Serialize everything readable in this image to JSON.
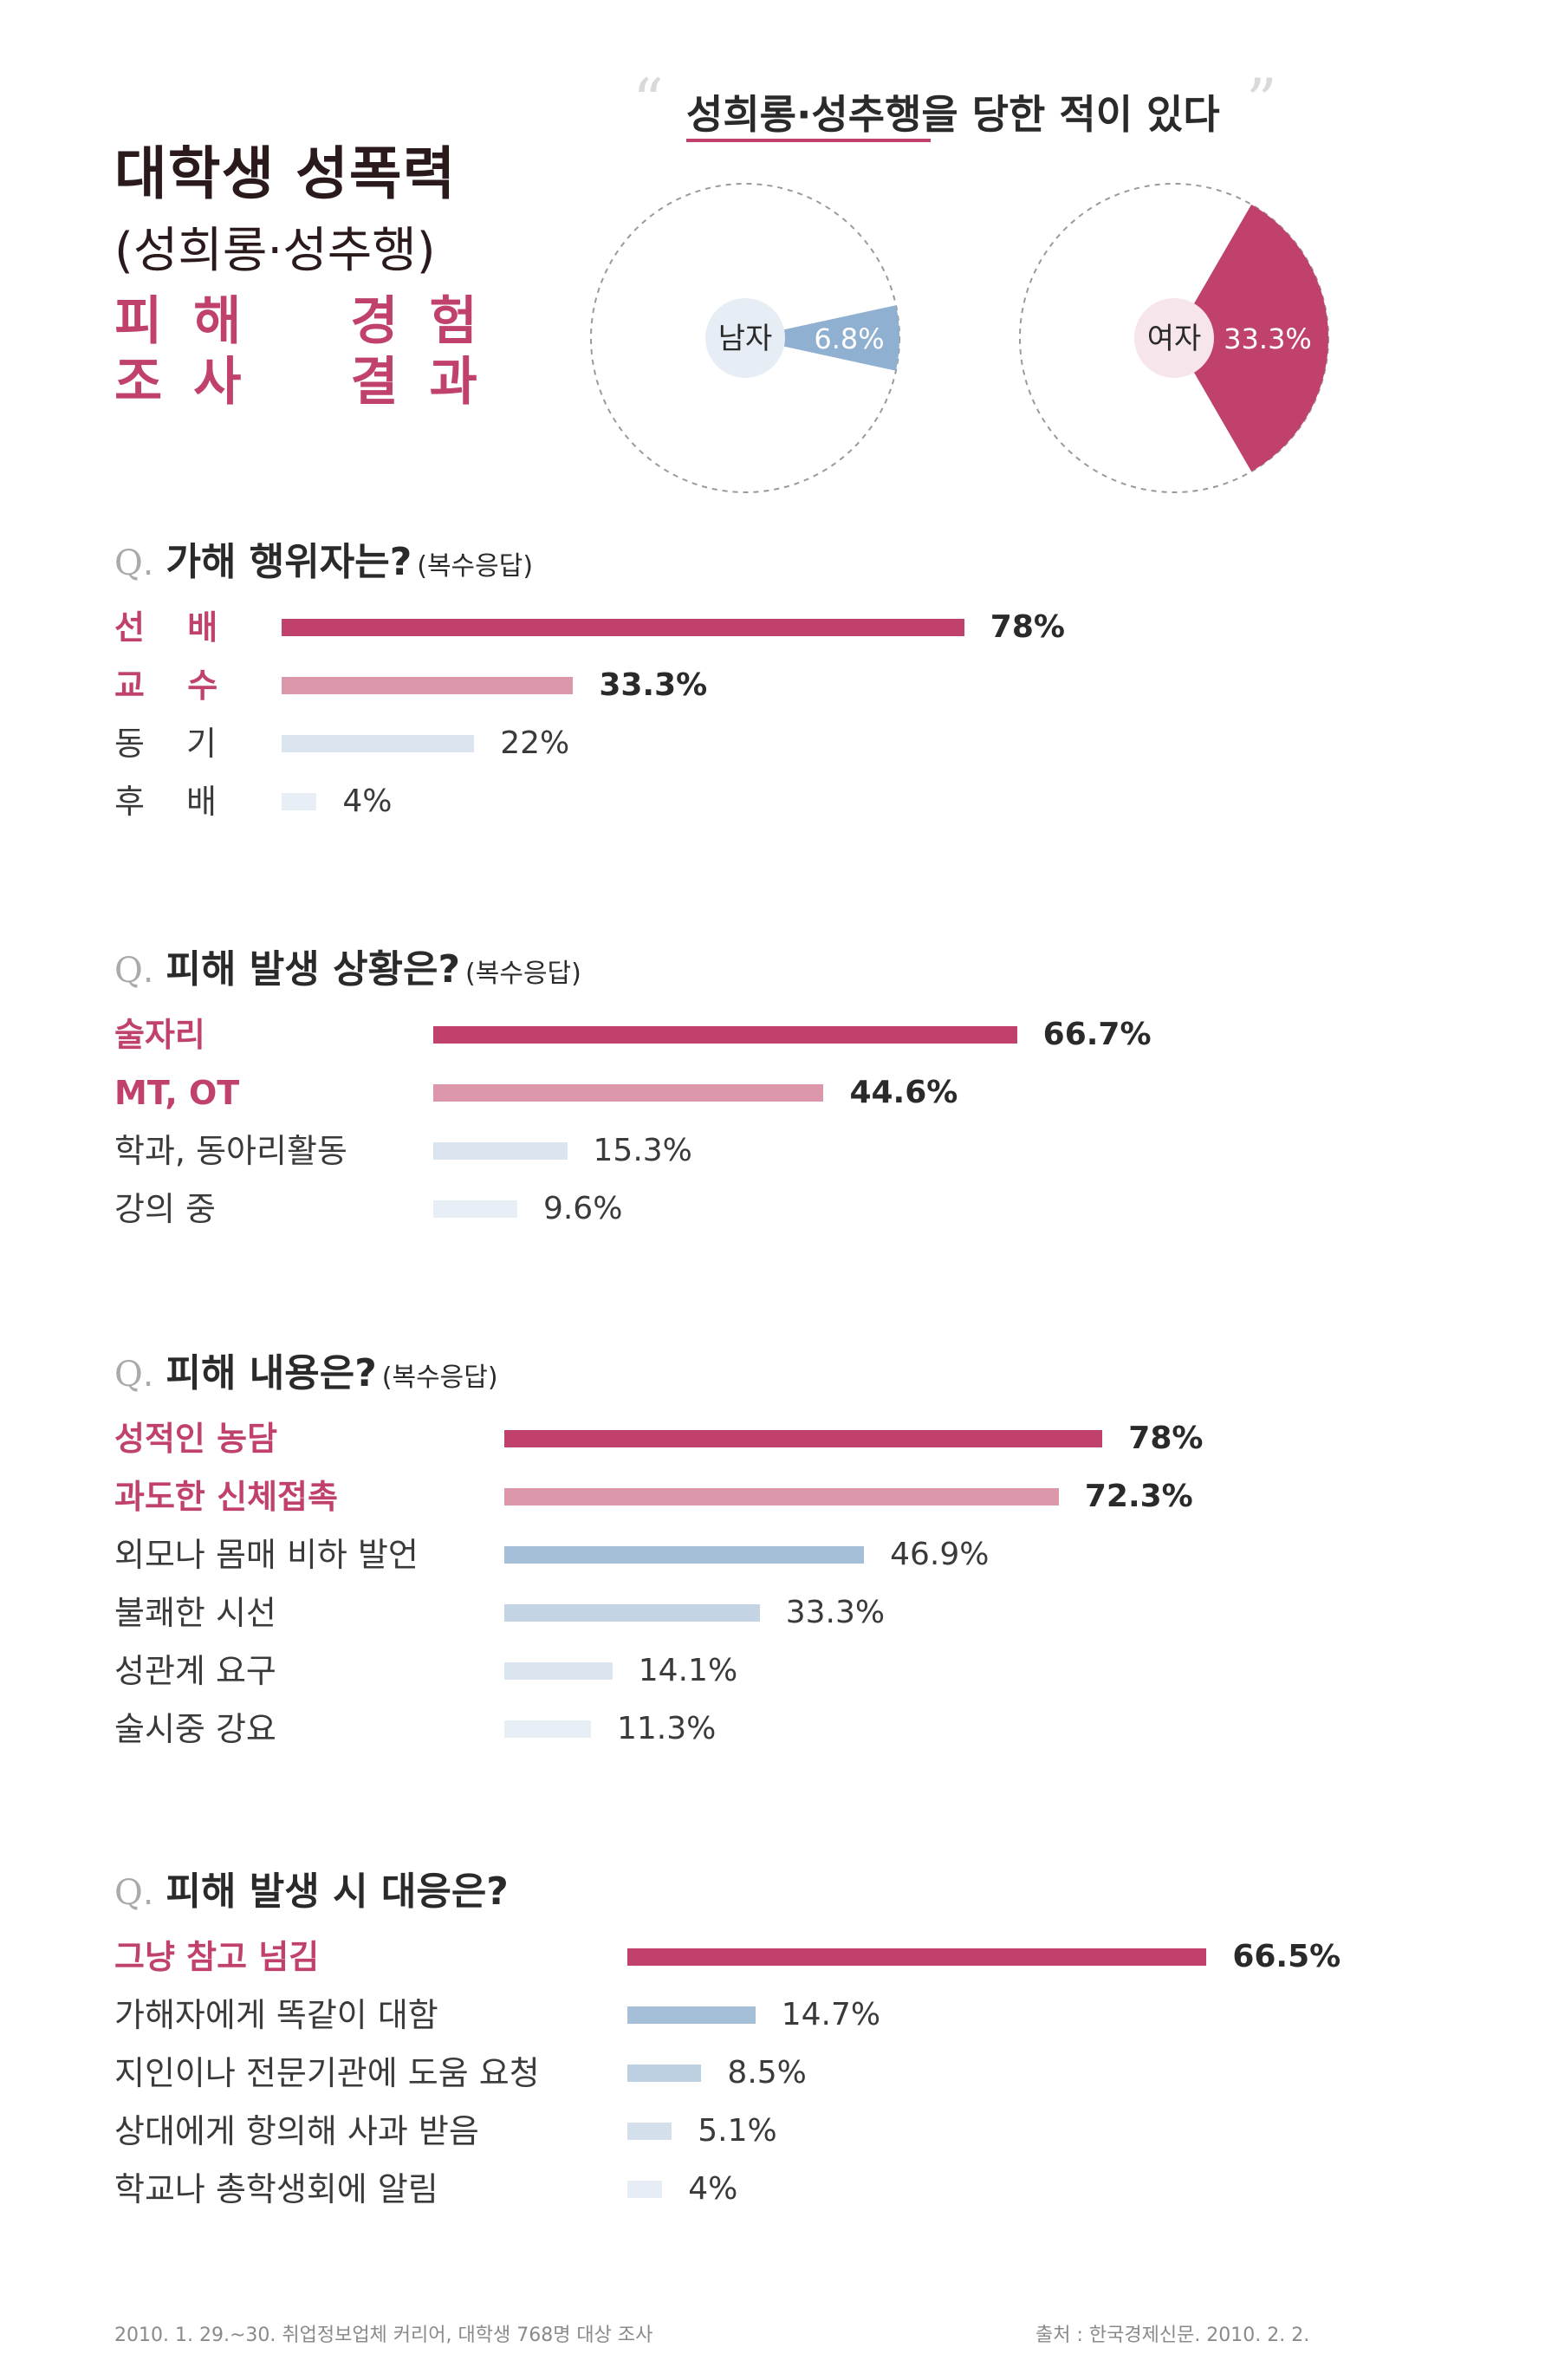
{
  "title": {
    "main": "대학생 성폭력",
    "sub": "(성희롱·성추행)",
    "red_line1": [
      "피해",
      "경험"
    ],
    "red_line2": [
      "조사",
      "결과"
    ]
  },
  "header_quote": {
    "open_mark": "“",
    "text": "성희롱·성추행을 당한 적이 있다",
    "close_mark": "”"
  },
  "colors": {
    "accent": "#c0426c",
    "accent_light": "#dd97ab",
    "blue": "#a6bfd8",
    "blue_light": "#c4d4e5",
    "blue_pale": "#dbe5ef",
    "blue_faint": "#e8eef5",
    "dark": "#2b1a1c"
  },
  "chart_data": [
    {
      "type": "pie",
      "title": "성희롱·성추행을 당한 적이 있다",
      "slices": [
        {
          "name": "남자",
          "value": 6.8,
          "label": "6.8%",
          "color": "#8fb0d0",
          "badge_color": "#e7edf4"
        },
        {
          "name": "여자",
          "value": 33.3,
          "label": "33.3%",
          "color": "#c0426c",
          "badge_color": "#f6e5ea"
        }
      ]
    },
    {
      "type": "bar",
      "question": "가해 행위자는?",
      "note": "(복수응답)",
      "categories": [
        "선 배",
        "교 수",
        "동 기",
        "후 배"
      ],
      "values": [
        78,
        33.3,
        22,
        4
      ],
      "labels": [
        "78%",
        "33.3%",
        "22%",
        "4%"
      ],
      "highlight": [
        true,
        true,
        false,
        false
      ],
      "colors": [
        "#c0426c",
        "#dd97ab",
        "#dbe5ef",
        "#e8eef5"
      ],
      "xlim": [
        0,
        100
      ]
    },
    {
      "type": "bar",
      "question": "피해 발생 상황은?",
      "note": "(복수응답)",
      "categories": [
        "술자리",
        "MT, OT",
        "학과, 동아리활동",
        "강의 중"
      ],
      "values": [
        66.7,
        44.6,
        15.3,
        9.6
      ],
      "labels": [
        "66.7%",
        "44.6%",
        "15.3%",
        "9.6%"
      ],
      "highlight": [
        true,
        true,
        false,
        false
      ],
      "colors": [
        "#c0426c",
        "#dd97ab",
        "#dbe5ef",
        "#e8eef5"
      ],
      "xlim": [
        0,
        100
      ]
    },
    {
      "type": "bar",
      "question": "피해 내용은?",
      "note": "(복수응답)",
      "categories": [
        "성적인 농담",
        "과도한 신체접촉",
        "외모나 몸매 비하 발언",
        "불쾌한 시선",
        "성관계 요구",
        "술시중 강요"
      ],
      "values": [
        78,
        72.3,
        46.9,
        33.3,
        14.1,
        11.3
      ],
      "labels": [
        "78%",
        "72.3%",
        "46.9%",
        "33.3%",
        "14.1%",
        "11.3%"
      ],
      "highlight": [
        true,
        true,
        false,
        false,
        false,
        false
      ],
      "colors": [
        "#c0426c",
        "#dd97ab",
        "#a6bfd8",
        "#c4d4e5",
        "#dbe5ef",
        "#e8eef5"
      ],
      "xlim": [
        0,
        100
      ]
    },
    {
      "type": "bar",
      "question": "피해 발생 시 대응은?",
      "note": "",
      "categories": [
        "그냥 참고 넘김",
        "가해자에게 똑같이 대함",
        "지인이나 전문기관에 도움 요청",
        "상대에게 항의해 사과 받음",
        "학교나 총학생회에 알림"
      ],
      "values": [
        66.5,
        14.7,
        8.5,
        5.1,
        4
      ],
      "labels": [
        "66.5%",
        "14.7%",
        "8.5%",
        "5.1%",
        "4%"
      ],
      "highlight": [
        true,
        false,
        false,
        false,
        false
      ],
      "colors": [
        "#c0426c",
        "#a6bfd8",
        "#bcd0e2",
        "#d3dfeb",
        "#e6edf4"
      ],
      "xlim": [
        0,
        100
      ]
    }
  ],
  "q_mark": "Q",
  "footer": {
    "left": "2010. 1. 29.~30. 취업정보업체 커리어, 대학생 768명 대상 조사",
    "right": "출처 : 한국경제신문. 2010. 2. 2."
  }
}
